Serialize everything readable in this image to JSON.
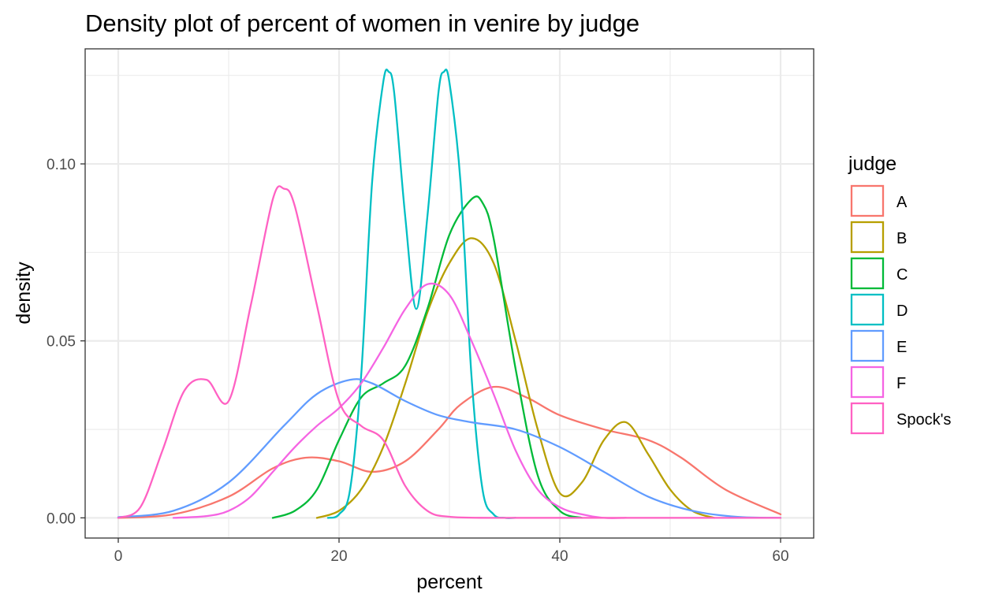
{
  "chart_data": {
    "type": "line",
    "title": "Density plot of percent of women in venire by judge",
    "xlabel": "percent",
    "ylabel": "density",
    "xlim": [
      -3,
      63
    ],
    "ylim": [
      -0.0057,
      0.1325
    ],
    "x_ticks": [
      0,
      20,
      40,
      60
    ],
    "x_tick_labels": [
      "0",
      "20",
      "40",
      "60"
    ],
    "y_ticks": [
      0,
      0.05,
      0.1
    ],
    "y_tick_labels": [
      "0.00",
      "0.05",
      "0.10"
    ],
    "x_minor": [
      10,
      30,
      50
    ],
    "y_minor": [
      0.025,
      0.075,
      0.125
    ],
    "grid": true,
    "legend_title": "judge",
    "legend_position": "right",
    "series": [
      {
        "name": "A",
        "color": "#F8766D",
        "x": [
          0,
          5,
          10,
          14,
          17,
          20,
          23,
          26,
          29,
          31,
          34,
          37,
          40,
          44,
          48,
          51,
          55,
          60
        ],
        "y": [
          0,
          0.001,
          0.006,
          0.014,
          0.017,
          0.016,
          0.013,
          0.016,
          0.025,
          0.032,
          0.037,
          0.034,
          0.029,
          0.025,
          0.022,
          0.017,
          0.008,
          0.001
        ]
      },
      {
        "name": "B",
        "color": "#B79F00",
        "x": [
          18,
          20,
          22,
          24,
          26,
          28,
          30,
          32,
          34,
          36,
          38,
          40,
          42,
          44,
          46,
          48,
          50,
          52,
          54
        ],
        "y": [
          0,
          0.002,
          0.008,
          0.02,
          0.038,
          0.058,
          0.072,
          0.079,
          0.072,
          0.05,
          0.025,
          0.007,
          0.01,
          0.022,
          0.027,
          0.018,
          0.008,
          0.002,
          0
        ]
      },
      {
        "name": "C",
        "color": "#00BA38",
        "x": [
          14,
          16,
          18,
          20,
          22,
          24,
          26,
          28,
          30,
          32,
          33,
          34,
          36,
          38,
          40,
          42
        ],
        "y": [
          0,
          0.002,
          0.008,
          0.022,
          0.034,
          0.038,
          0.043,
          0.059,
          0.08,
          0.09,
          0.089,
          0.079,
          0.042,
          0.012,
          0.002,
          0
        ]
      },
      {
        "name": "D",
        "color": "#00BFC4",
        "x": [
          19,
          20,
          21,
          22,
          23,
          24,
          24.5,
          25,
          26,
          27,
          28,
          29,
          29.5,
          30,
          31,
          32,
          33,
          34,
          35,
          36
        ],
        "y": [
          0,
          0.001,
          0.008,
          0.04,
          0.095,
          0.123,
          0.126,
          0.12,
          0.085,
          0.059,
          0.085,
          0.12,
          0.126,
          0.123,
          0.095,
          0.04,
          0.008,
          0.001,
          0,
          0
        ]
      },
      {
        "name": "E",
        "color": "#619CFF",
        "x": [
          0,
          5,
          10,
          15,
          18,
          21,
          23,
          26,
          29,
          32,
          36,
          40,
          44,
          48,
          52,
          56,
          60
        ],
        "y": [
          0.0002,
          0.002,
          0.01,
          0.026,
          0.035,
          0.039,
          0.038,
          0.033,
          0.029,
          0.027,
          0.025,
          0.02,
          0.013,
          0.006,
          0.002,
          0.0003,
          0
        ]
      },
      {
        "name": "F",
        "color": "#F564E3",
        "x": [
          5,
          8,
          10,
          12,
          14,
          16,
          18,
          20,
          22,
          24,
          26,
          28,
          30,
          32,
          34,
          36,
          38,
          40,
          42,
          44,
          46
        ],
        "y": [
          0,
          0.0005,
          0.002,
          0.006,
          0.013,
          0.02,
          0.026,
          0.031,
          0.038,
          0.048,
          0.059,
          0.066,
          0.063,
          0.05,
          0.035,
          0.019,
          0.008,
          0.003,
          0.001,
          0,
          0
        ]
      },
      {
        "name": "Spock's",
        "color": "#FF61C3",
        "x": [
          0,
          2,
          4,
          6,
          8,
          10,
          12,
          14,
          15,
          16,
          18,
          20,
          22,
          24,
          26,
          28,
          30,
          34,
          40,
          50,
          60
        ],
        "y": [
          0,
          0.003,
          0.019,
          0.036,
          0.039,
          0.033,
          0.06,
          0.09,
          0.093,
          0.088,
          0.06,
          0.033,
          0.026,
          0.022,
          0.009,
          0.002,
          0.0003,
          0,
          0,
          0,
          0
        ]
      }
    ]
  }
}
